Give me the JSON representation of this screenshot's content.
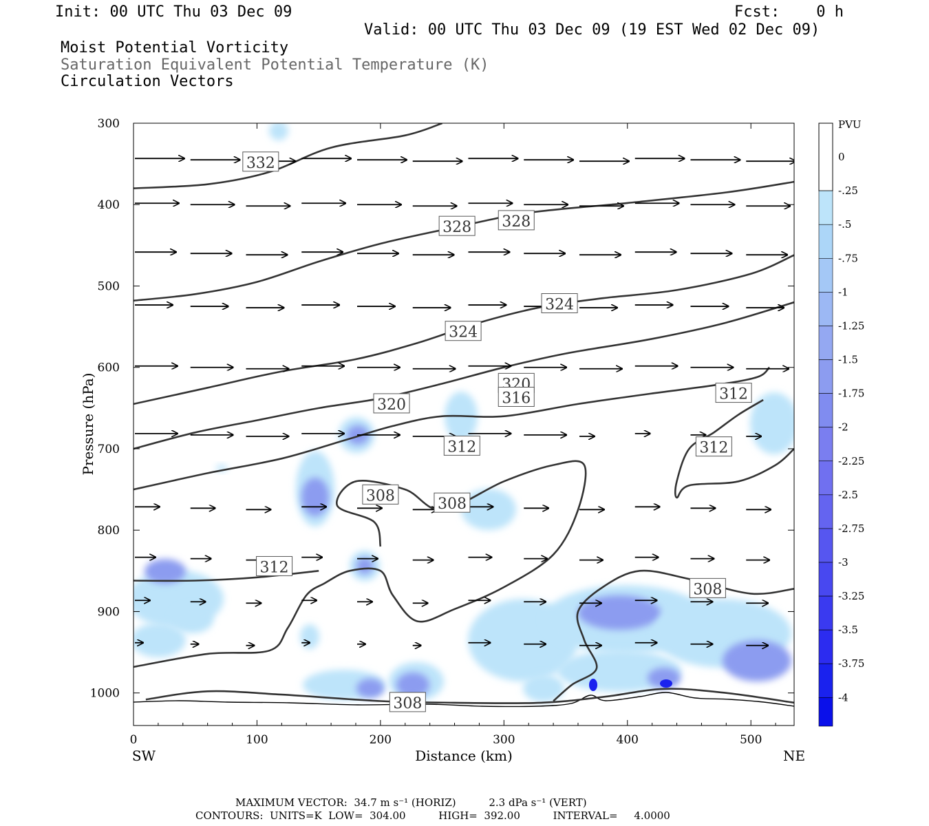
{
  "header": {
    "init": "Init: 00 UTC Thu 03 Dec 09",
    "fcst": "Fcst:    0 h",
    "valid": "Valid: 00 UTC Thu 03 Dec 09 (19 EST Wed 02 Dec 09)",
    "line1": "Moist Potential Vorticity",
    "line2": "Saturation Equivalent Potential Temperature (K)",
    "line3": "Circulation Vectors"
  },
  "footer": {
    "max_vector": "MAXIMUM VECTOR:  34.7 m s⁻¹ (HORIZ)          2.3 dPa s⁻¹ (VERT)",
    "contours": "CONTOURS:  UNITS=K  LOW=  304.00          HIGH=  392.00          INTERVAL=     4.0000"
  },
  "colors": {
    "pv_light": "#bde4fa",
    "pv_mid": "#8c9cf0",
    "pv_dark": "#1a22ee",
    "contour": "#333333",
    "terrain": "#000000"
  },
  "chart_data": {
    "type": "cross-section",
    "xlabel": "Distance (km)",
    "ylabel": "Pressure (hPa)",
    "x_ticks": [
      0,
      100,
      200,
      300,
      400,
      500
    ],
    "y_ticks": [
      300,
      400,
      500,
      600,
      700,
      800,
      900,
      1000
    ],
    "xlim": [
      0,
      535
    ],
    "ylim": [
      1040,
      300
    ],
    "left_end_label": "SW",
    "right_end_label": "NE",
    "colorbar": {
      "title": "PVU",
      "labels": [
        "0",
        "-.25",
        "-.5",
        "-.75",
        "-1",
        "-1.25",
        "-1.5",
        "-1.75",
        "-2",
        "-2.25",
        "-2.5",
        "-2.75",
        "-3",
        "-3.25",
        "-3.5",
        "-3.75",
        "-4"
      ],
      "colors": [
        "#ffffff",
        "#bde4fa",
        "#acd6f8",
        "#a4c8f6",
        "#9cb8f4",
        "#94a8f2",
        "#8c9cf0",
        "#808cf0",
        "#7a7ef0",
        "#7070f0",
        "#6464f0",
        "#5656f0",
        "#4848f0",
        "#3a3af0",
        "#2c2cf0",
        "#1a22ee",
        "#0a10ea"
      ]
    },
    "theta_es_contours": [
      {
        "value": 332,
        "points": [
          [
            0,
            380
          ],
          [
            60,
            375
          ],
          [
            110,
            360
          ],
          [
            160,
            330
          ],
          [
            220,
            315
          ],
          [
            250,
            300
          ]
        ]
      },
      {
        "value": 328,
        "points": [
          [
            0,
            518
          ],
          [
            50,
            510
          ],
          [
            100,
            495
          ],
          [
            150,
            470
          ],
          [
            200,
            448
          ],
          [
            260,
            428
          ],
          [
            320,
            410
          ],
          [
            400,
            398
          ],
          [
            480,
            385
          ],
          [
            535,
            372
          ]
        ]
      },
      {
        "value": 324,
        "points": [
          [
            0,
            645
          ],
          [
            60,
            625
          ],
          [
            120,
            605
          ],
          [
            180,
            590
          ],
          [
            230,
            570
          ],
          [
            280,
            545
          ],
          [
            330,
            526
          ],
          [
            380,
            515
          ],
          [
            440,
            505
          ],
          [
            500,
            485
          ],
          [
            535,
            462
          ]
        ]
      },
      {
        "value": 320,
        "points": [
          [
            0,
            700
          ],
          [
            50,
            680
          ],
          [
            100,
            665
          ],
          [
            150,
            650
          ],
          [
            200,
            638
          ],
          [
            250,
            620
          ],
          [
            300,
            600
          ],
          [
            350,
            583
          ],
          [
            420,
            565
          ],
          [
            480,
            545
          ],
          [
            535,
            520
          ]
        ]
      },
      {
        "value": 316,
        "points": [
          [
            0,
            750
          ],
          [
            60,
            730
          ],
          [
            120,
            712
          ],
          [
            170,
            690
          ],
          [
            210,
            672
          ],
          [
            250,
            660
          ],
          [
            300,
            660
          ],
          [
            360,
            645
          ],
          [
            420,
            632
          ],
          [
            470,
            622
          ],
          [
            505,
            612
          ],
          [
            515,
            600
          ]
        ]
      },
      {
        "value": 312,
        "points": [
          [
            0,
            862
          ],
          [
            50,
            862
          ],
          [
            100,
            858
          ],
          [
            150,
            850
          ]
        ]
      },
      {
        "value": 312,
        "points": [
          [
            535,
            700
          ],
          [
            520,
            720
          ],
          [
            490,
            740
          ],
          [
            450,
            745
          ],
          [
            440,
            760
          ],
          [
            440,
            740
          ],
          [
            450,
            700
          ],
          [
            470,
            680
          ],
          [
            490,
            658
          ],
          [
            510,
            640
          ]
        ]
      },
      {
        "value": 308,
        "points": [
          [
            0,
            968
          ],
          [
            60,
            952
          ],
          [
            110,
            948
          ],
          [
            125,
            920
          ],
          [
            140,
            880
          ],
          [
            155,
            865
          ],
          [
            175,
            850
          ],
          [
            200,
            850
          ],
          [
            210,
            880
          ],
          [
            230,
            912
          ],
          [
            260,
            897
          ],
          [
            300,
            870
          ],
          [
            340,
            830
          ],
          [
            360,
            775
          ],
          [
            365,
            720
          ],
          [
            340,
            720
          ],
          [
            300,
            740
          ],
          [
            250,
            775
          ],
          [
            220,
            750
          ],
          [
            180,
            740
          ],
          [
            165,
            770
          ],
          [
            195,
            790
          ],
          [
            200,
            820
          ]
        ]
      },
      {
        "value": 308,
        "points": [
          [
            340,
            1010
          ],
          [
            355,
            990
          ],
          [
            375,
            970
          ],
          [
            365,
            935
          ],
          [
            360,
            900
          ],
          [
            380,
            870
          ],
          [
            410,
            850
          ],
          [
            450,
            860
          ],
          [
            500,
            878
          ],
          [
            535,
            872
          ]
        ]
      },
      {
        "value": 308,
        "points": [
          [
            10,
            1008
          ],
          [
            60,
            998
          ],
          [
            120,
            1002
          ],
          [
            200,
            1010
          ],
          [
            260,
            1012
          ],
          [
            330,
            1012
          ],
          [
            380,
            1005
          ],
          [
            430,
            995
          ],
          [
            480,
            1000
          ],
          [
            535,
            1012
          ]
        ]
      }
    ],
    "contour_labels": [
      {
        "text": "332",
        "x": 103,
        "y": 348
      },
      {
        "text": "328",
        "x": 262,
        "y": 427
      },
      {
        "text": "328",
        "x": 310,
        "y": 420
      },
      {
        "text": "324",
        "x": 345,
        "y": 522
      },
      {
        "text": "324",
        "x": 267,
        "y": 556
      },
      {
        "text": "320",
        "x": 310,
        "y": 620
      },
      {
        "text": "320",
        "x": 209,
        "y": 645
      },
      {
        "text": "316",
        "x": 310,
        "y": 637
      },
      {
        "text": "312",
        "x": 486,
        "y": 632
      },
      {
        "text": "312",
        "x": 266,
        "y": 697
      },
      {
        "text": "312",
        "x": 470,
        "y": 698
      },
      {
        "text": "308",
        "x": 200,
        "y": 757
      },
      {
        "text": "308",
        "x": 258,
        "y": 767
      },
      {
        "text": "312",
        "x": 114,
        "y": 845
      },
      {
        "text": "308",
        "x": 465,
        "y": 872
      },
      {
        "text": "308",
        "x": 222,
        "y": 1012
      }
    ],
    "max_vector": {
      "horiz_m_s": 34.7,
      "vert_dPa_s": 2.3
    },
    "contour_low": 304.0,
    "contour_high": 392.0,
    "contour_interval": 4.0
  }
}
